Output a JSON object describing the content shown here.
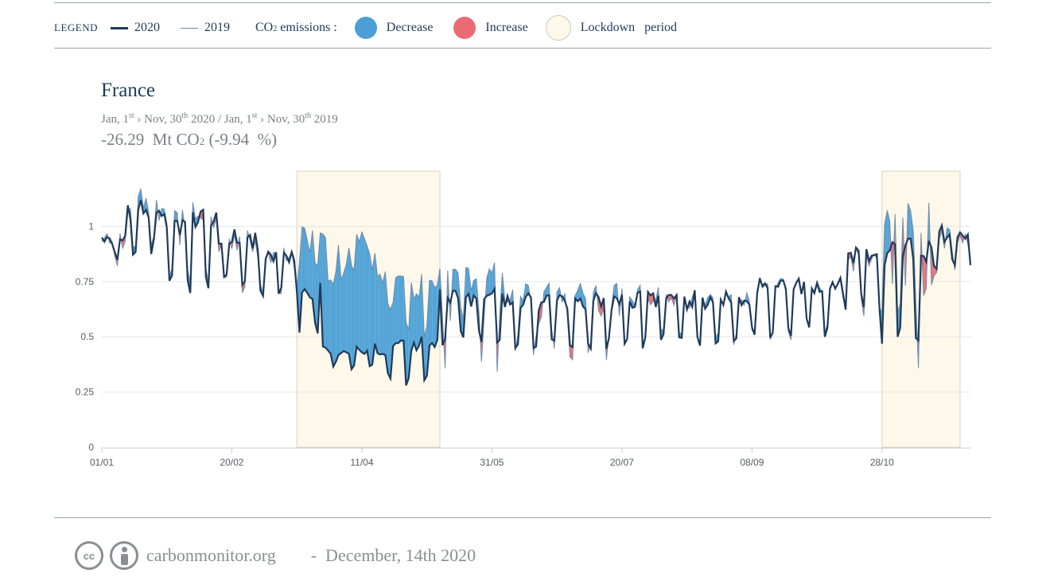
{
  "legend": {
    "title": "LEGEND",
    "series_2020": "2020",
    "series_2019": "2019",
    "emissions_label_pre": "CO",
    "emissions_label_sub": "2",
    "emissions_label_post": " emissions :",
    "decrease": "Decrease",
    "increase": "Increase",
    "lockdown": "Lockdown   period",
    "colors": {
      "decrease": "#4a9fd6",
      "increase": "#ea6b73",
      "lockdown": "#fdf8ea",
      "line_2020": "#1f3a5a",
      "line_2019": "#6f8aa8"
    }
  },
  "chart_data": {
    "type": "area",
    "title": "France",
    "subtitle": {
      "p1": "Jan,  1",
      "s1": "st",
      "p2": " › Nov, 30",
      "s2": "th",
      "p3": " 2020 / Jan,  1",
      "s3": "st",
      "p4": " › Nov, 30",
      "s4": "th",
      "p5": " 2019"
    },
    "total": {
      "value": "-26.29  Mt CO",
      "sub": "2",
      "pct": " (-9.94  %)"
    },
    "x_range_days": [
      0,
      334
    ],
    "x_ticks": [
      {
        "day": 0,
        "label": "01/01"
      },
      {
        "day": 50,
        "label": "20/02"
      },
      {
        "day": 100,
        "label": "11/04"
      },
      {
        "day": 150,
        "label": "31/05"
      },
      {
        "day": 200,
        "label": "20/07"
      },
      {
        "day": 250,
        "label": "08/09"
      },
      {
        "day": 300,
        "label": "28/10"
      }
    ],
    "ylim": [
      0,
      1.25
    ],
    "y_ticks": [
      0,
      0.25,
      0.5,
      0.75,
      1
    ],
    "y_tick_labels": [
      "0",
      "0.25",
      "0.5",
      "0.75",
      "1"
    ],
    "grid": true,
    "lockdown_periods": [
      {
        "start_day": 75,
        "end_day": 130
      },
      {
        "start_day": 300,
        "end_day": 330
      }
    ],
    "segments": [
      {
        "start_day": 0,
        "end_day": 10,
        "base": 0.92,
        "amp": 0.06,
        "delta": 0.02
      },
      {
        "start_day": 10,
        "end_day": 25,
        "base": 1.02,
        "amp": 0.12,
        "delta": 0.04
      },
      {
        "start_day": 25,
        "end_day": 45,
        "base": 0.93,
        "amp": 0.2,
        "delta": 0.03
      },
      {
        "start_day": 45,
        "end_day": 60,
        "base": 0.88,
        "amp": 0.14,
        "delta": -0.02
      },
      {
        "start_day": 60,
        "end_day": 76,
        "base": 0.82,
        "amp": 0.12,
        "delta": 0.02
      },
      {
        "start_day": 76,
        "end_day": 85,
        "base": 0.65,
        "amp": 0.12,
        "delta": 0.28
      },
      {
        "start_day": 85,
        "end_day": 110,
        "base": 0.42,
        "amp": 0.05,
        "delta": 0.42
      },
      {
        "start_day": 110,
        "end_day": 130,
        "base": 0.42,
        "amp": 0.12,
        "delta": 0.25
      },
      {
        "start_day": 130,
        "end_day": 155,
        "base": 0.62,
        "amp": 0.14,
        "delta": 0.1
      },
      {
        "start_day": 155,
        "end_day": 200,
        "base": 0.6,
        "amp": 0.13,
        "delta": 0.04
      },
      {
        "start_day": 200,
        "end_day": 250,
        "base": 0.61,
        "amp": 0.13,
        "delta": 0.02
      },
      {
        "start_day": 250,
        "end_day": 285,
        "base": 0.67,
        "amp": 0.15,
        "delta": 0.0
      },
      {
        "start_day": 285,
        "end_day": 300,
        "base": 0.8,
        "amp": 0.15,
        "delta": -0.03
      },
      {
        "start_day": 300,
        "end_day": 320,
        "base": 0.78,
        "amp": 0.25,
        "delta": 0.15
      },
      {
        "start_day": 320,
        "end_day": 334,
        "base": 0.92,
        "amp": 0.1,
        "delta": -0.03
      }
    ]
  },
  "footer": {
    "cc_label": "cc",
    "site": "carbonmonitor.org",
    "date": "-  December, 14th 2020"
  }
}
